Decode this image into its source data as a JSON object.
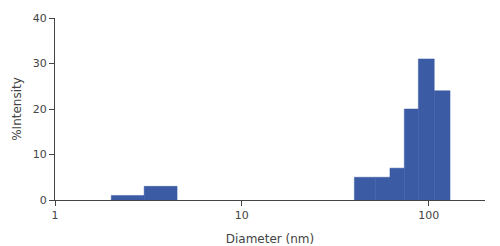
{
  "chart_data": {
    "type": "histogram",
    "bins": [
      2.0,
      3.0,
      4.5,
      40.0,
      52.0,
      62.0,
      74.0,
      88.0,
      107.0,
      130.0,
      160.0
    ],
    "values": [
      1.0,
      3.0,
      0.0,
      5.0,
      5.0,
      7.0,
      20.0,
      31.0,
      24.0,
      0.0
    ],
    "color": "#3b5ba5",
    "xlabel": "Diameter (nm)",
    "ylabel": "%Intensity",
    "log": "x",
    "xlim": [
      1,
      200
    ],
    "xticks": [
      1,
      10,
      100
    ],
    "ylim": [
      0,
      40
    ],
    "yticks": [
      0,
      10,
      20,
      30,
      40
    ],
    "grid": false
  }
}
